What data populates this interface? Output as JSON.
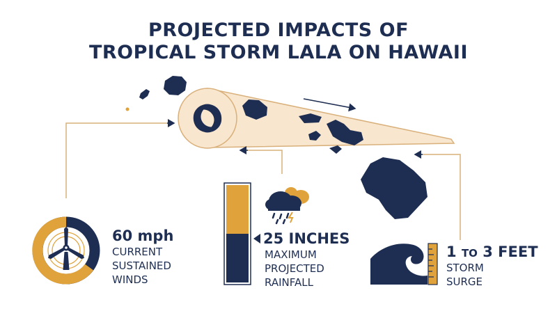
{
  "title": {
    "line1": "PROJECTED IMPACTS OF",
    "line2": "TROPICAL STORM LALA ON HAWAII"
  },
  "wind": {
    "value": "60 mph",
    "caption": [
      "CURRENT",
      "SUSTAINED",
      "WINDS"
    ],
    "icon": "wind-turbine-icon"
  },
  "rainfall": {
    "value": "25 INCHES",
    "caption": [
      "MAXIMUM",
      "PROJECTED",
      "RAINFALL"
    ],
    "icon": "rain-cloud-icon",
    "level": 0.5
  },
  "surge": {
    "value_low": "1",
    "value_to": "TO",
    "value_high": "3 FEET",
    "caption": [
      "STORM",
      "SURGE"
    ],
    "icon": "wave-icon"
  },
  "colors": {
    "navy": "#1e2e52",
    "gold": "#e0a23a",
    "cream": "#f8e6cf",
    "path_outline": "#d9b07a"
  }
}
